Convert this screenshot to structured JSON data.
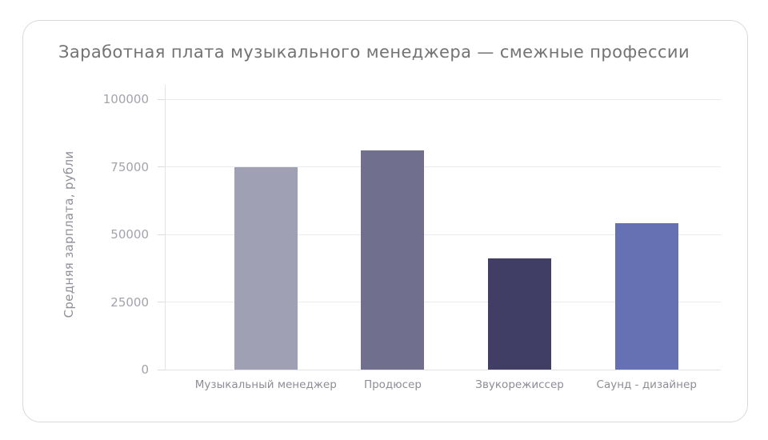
{
  "card": {
    "background": "#ffffff",
    "border_color": "#d9d9d9"
  },
  "chart_data": {
    "type": "bar",
    "title": "Заработная плата музыкального менеджера — смежные профессии",
    "ylabel": "Средняя зарплата, рубли",
    "xlabel": "",
    "categories": [
      "Музыкальный менеджер",
      "Продюсер",
      "Звукорежиссер",
      "Саунд - дизайнер"
    ],
    "values": [
      75000,
      81000,
      41000,
      54000
    ],
    "bar_colors": [
      "#9fa0b4",
      "#716f8e",
      "#413e66",
      "#6571b2"
    ],
    "yticks": [
      0,
      25000,
      50000,
      75000,
      100000
    ],
    "ylim": [
      0,
      100000
    ],
    "grid": true,
    "legend": false,
    "title_color": "#737373",
    "axis_label_color": "#90909a",
    "tick_label_color": "#a3a3ac",
    "gridline_color": "#ebebef"
  }
}
